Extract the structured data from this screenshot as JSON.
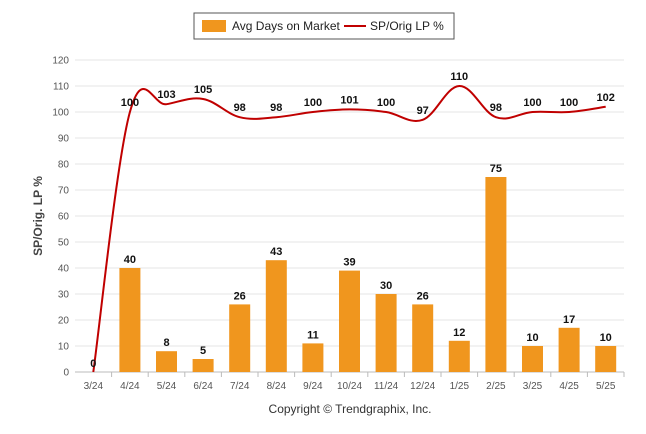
{
  "chart_data": {
    "type": "bar",
    "categories": [
      "3/24",
      "4/24",
      "5/24",
      "6/24",
      "7/24",
      "8/24",
      "9/24",
      "10/24",
      "11/24",
      "12/24",
      "1/25",
      "2/25",
      "3/25",
      "4/25",
      "5/25"
    ],
    "series": [
      {
        "name": "Avg Days on Market",
        "type": "bar",
        "color": "#F0961E",
        "values": [
          0,
          40,
          8,
          5,
          26,
          43,
          11,
          39,
          30,
          26,
          12,
          75,
          10,
          17,
          10
        ]
      },
      {
        "name": "SP/Orig LP %",
        "type": "line",
        "color": "#C00000",
        "values": [
          0,
          100,
          103,
          105,
          98,
          98,
          100,
          101,
          100,
          97,
          110,
          98,
          100,
          100,
          102
        ]
      }
    ],
    "ylabel": "SP/Orig. LP %",
    "ylim": [
      0,
      120
    ],
    "yticks": [
      0,
      10,
      20,
      30,
      40,
      50,
      60,
      70,
      80,
      90,
      100,
      110,
      120
    ],
    "grid": true,
    "legend_position": "top-center",
    "credit": "Copyright © Trendgraphix, Inc."
  }
}
